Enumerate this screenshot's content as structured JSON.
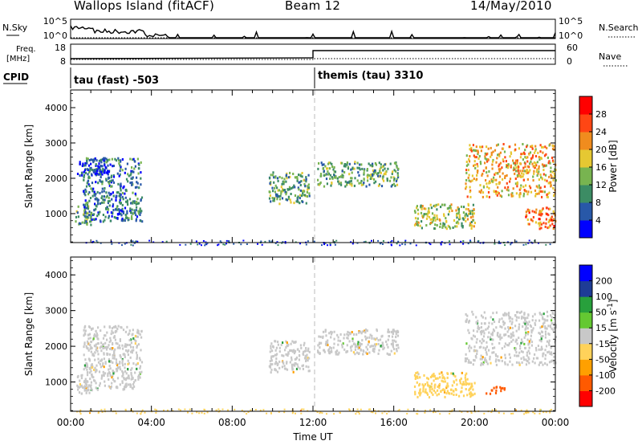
{
  "header": {
    "station": "Wallops Island (fitACF)",
    "beam": "Beam 12",
    "date": "14/May/2010"
  },
  "labels": {
    "nsky": "N.Sky",
    "nsearch": "N.Search",
    "freq": "Freq.",
    "freq_unit": "[MHz]",
    "nave": "Nave",
    "cpid": "CPID",
    "nsky_ticks": [
      "10^5",
      "10^0"
    ],
    "nsearch_ticks": [
      "10^5",
      "10^0"
    ],
    "freq_ticks": [
      "18",
      "8"
    ],
    "nave_ticks": [
      "60",
      "0"
    ]
  },
  "cpid_modes": [
    {
      "label": "tau (fast) -503",
      "start_hour": 0
    },
    {
      "label": "themis (tau) 3310",
      "start_hour": 12
    }
  ],
  "colors": {
    "power": [
      "#0000ff",
      "#2858a8",
      "#3c8c64",
      "#78b450",
      "#e6c832",
      "#f08c1e",
      "#ff4614",
      "#ff0000"
    ],
    "velocity": [
      "#ff0000",
      "#ff5a00",
      "#ffa000",
      "#ffd25a",
      "#c8c8c8",
      "#64c832",
      "#28a03c",
      "#1e3c96",
      "#0000ff"
    ]
  },
  "chart_data": [
    {
      "type": "heatmap",
      "title": "",
      "xlabel": "",
      "ylabel": "Slant Range [km]",
      "xlim": [
        0,
        24
      ],
      "ylim": [
        180,
        4500
      ],
      "x_ticks": [],
      "y_ticks": [
        "1000",
        "2000",
        "3000",
        "4000"
      ],
      "colorbar": {
        "label": "Power [dB]",
        "ticks": [
          "4",
          "8",
          "12",
          "16",
          "20",
          "24",
          "28"
        ]
      },
      "regions": [
        {
          "x": [
            0.2,
            1.0
          ],
          "y": [
            700,
            1300
          ],
          "level": 3
        },
        {
          "x": [
            0.6,
            3.5
          ],
          "y": [
            800,
            2600
          ],
          "level": 2
        },
        {
          "x": [
            0.3,
            1.8
          ],
          "y": [
            2100,
            2600
          ],
          "level": 1
        },
        {
          "x": [
            9.8,
            11.8
          ],
          "y": [
            1300,
            2200
          ],
          "level": 3
        },
        {
          "x": [
            12.2,
            16.2
          ],
          "y": [
            1800,
            2500
          ],
          "level": 3
        },
        {
          "x": [
            17,
            20
          ],
          "y": [
            600,
            1300
          ],
          "level": 4
        },
        {
          "x": [
            19.5,
            24
          ],
          "y": [
            1500,
            3000
          ],
          "level": 5
        },
        {
          "x": [
            22.5,
            24
          ],
          "y": [
            600,
            1200
          ],
          "level": 6
        }
      ]
    },
    {
      "type": "heatmap",
      "title": "",
      "xlabel": "Time UT",
      "ylabel": "Slant Range [km]",
      "xlim": [
        0,
        24
      ],
      "ylim": [
        180,
        4500
      ],
      "x_ticks": [
        "00:00",
        "04:00",
        "08:00",
        "12:00",
        "16:00",
        "20:00",
        "00:00"
      ],
      "y_ticks": [
        "1000",
        "2000",
        "3000",
        "4000"
      ],
      "colorbar": {
        "label": "Velocity [m s^-1]",
        "ticks": [
          "200",
          "100",
          "50",
          "15",
          "-15",
          "-50",
          "-100",
          "-200"
        ]
      },
      "regions": [
        {
          "x": [
            0.2,
            1.0
          ],
          "y": [
            700,
            1300
          ],
          "velocity": 0
        },
        {
          "x": [
            0.6,
            3.5
          ],
          "y": [
            800,
            2600
          ],
          "velocity": 0
        },
        {
          "x": [
            9.8,
            11.8
          ],
          "y": [
            1300,
            2200
          ],
          "velocity": 0
        },
        {
          "x": [
            12.2,
            16.2
          ],
          "y": [
            1800,
            2500
          ],
          "velocity": 0
        },
        {
          "x": [
            17,
            20
          ],
          "y": [
            600,
            1300
          ],
          "velocity": -20
        },
        {
          "x": [
            20.5,
            21.5
          ],
          "y": [
            700,
            900
          ],
          "velocity": -150
        },
        {
          "x": [
            19.5,
            24
          ],
          "y": [
            1500,
            3000
          ],
          "velocity": 0
        }
      ]
    }
  ]
}
